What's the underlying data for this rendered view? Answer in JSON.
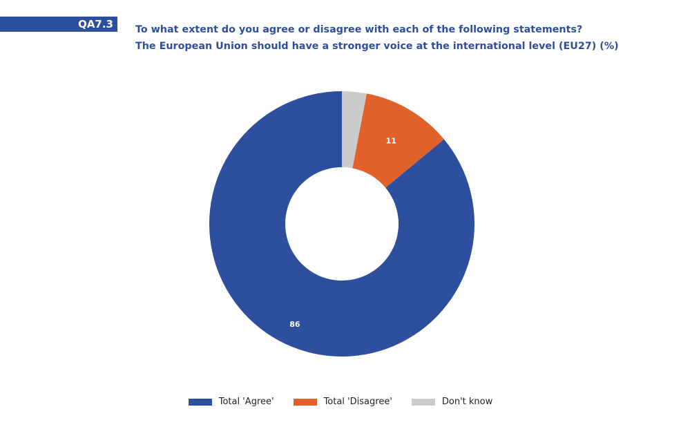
{
  "header": {
    "code": "QA7.3",
    "question": "To what extent do you agree or disagree with each of the following statements?",
    "statement": "The European Union should have a stronger voice at the international level (EU27) (%)"
  },
  "chart_data": {
    "type": "pie",
    "donut": true,
    "slices": [
      {
        "name": "Total 'Agree'",
        "value": 86,
        "color": "#2e4f9d",
        "label": "86"
      },
      {
        "name": "Total 'Disagree'",
        "value": 11,
        "color": "#e0622a",
        "label": "11"
      },
      {
        "name": "Don't know",
        "value": 3,
        "color": "#cccccc",
        "label": ""
      }
    ],
    "legend": "bottom"
  }
}
